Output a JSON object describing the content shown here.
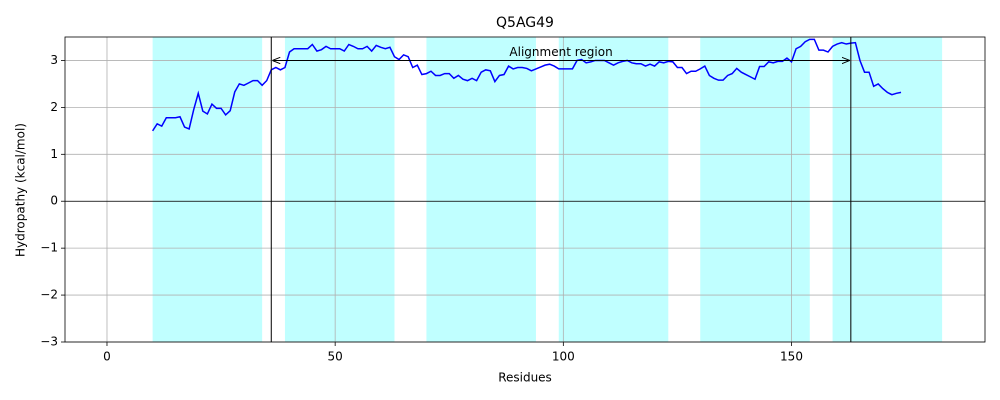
{
  "chart_data": {
    "type": "line",
    "title": "Q5AG49",
    "x_label": "Residues",
    "y_label": "Hydropathy (kcal/mol)",
    "x": [
      10,
      11,
      12,
      13,
      14,
      15,
      16,
      17,
      18,
      19,
      20,
      21,
      22,
      23,
      24,
      25,
      26,
      27,
      28,
      29,
      30,
      31,
      32,
      33,
      34,
      35,
      36,
      37,
      38,
      39,
      40,
      41,
      42,
      43,
      44,
      45,
      46,
      47,
      48,
      49,
      50,
      51,
      52,
      53,
      54,
      55,
      56,
      57,
      58,
      59,
      60,
      61,
      62,
      63,
      64,
      65,
      66,
      67,
      68,
      69,
      70,
      71,
      72,
      73,
      74,
      75,
      76,
      77,
      78,
      79,
      80,
      81,
      82,
      83,
      84,
      85,
      86,
      87,
      88,
      89,
      90,
      91,
      92,
      93,
      94,
      95,
      96,
      97,
      98,
      99,
      100,
      101,
      102,
      103,
      104,
      105,
      106,
      107,
      108,
      109,
      110,
      111,
      112,
      113,
      114,
      115,
      116,
      117,
      118,
      119,
      120,
      121,
      122,
      123,
      124,
      125,
      126,
      127,
      128,
      129,
      130,
      131,
      132,
      133,
      134,
      135,
      136,
      137,
      138,
      139,
      140,
      141,
      142,
      143,
      144,
      145,
      146,
      147,
      148,
      149,
      150,
      151,
      152,
      153,
      154,
      155,
      156,
      157,
      158,
      159,
      160,
      161,
      162,
      163,
      164,
      165,
      166,
      167,
      168,
      169,
      170,
      171,
      172,
      173,
      174
    ],
    "series": [
      {
        "color": "#0000ff",
        "values": [
          1.5,
          1.65,
          1.6,
          1.78,
          1.78,
          1.78,
          1.8,
          1.58,
          1.54,
          1.95,
          2.3,
          1.92,
          1.86,
          2.07,
          1.98,
          1.98,
          1.84,
          1.93,
          2.33,
          2.5,
          2.47,
          2.52,
          2.57,
          2.57,
          2.47,
          2.57,
          2.8,
          2.85,
          2.8,
          2.85,
          3.18,
          3.25,
          3.25,
          3.25,
          3.25,
          3.34,
          3.2,
          3.23,
          3.3,
          3.25,
          3.25,
          3.25,
          3.2,
          3.34,
          3.3,
          3.25,
          3.25,
          3.3,
          3.2,
          3.32,
          3.28,
          3.25,
          3.28,
          3.08,
          3.02,
          3.12,
          3.08,
          2.85,
          2.9,
          2.7,
          2.72,
          2.77,
          2.68,
          2.68,
          2.72,
          2.72,
          2.62,
          2.68,
          2.6,
          2.57,
          2.62,
          2.57,
          2.75,
          2.8,
          2.78,
          2.55,
          2.68,
          2.7,
          2.88,
          2.82,
          2.85,
          2.85,
          2.83,
          2.78,
          2.82,
          2.86,
          2.9,
          2.92,
          2.88,
          2.82,
          2.82,
          2.82,
          2.82,
          3.0,
          3.02,
          2.95,
          2.97,
          3.0,
          3.0,
          3.0,
          2.95,
          2.9,
          2.95,
          2.98,
          3.0,
          2.95,
          2.93,
          2.93,
          2.88,
          2.92,
          2.88,
          2.97,
          2.95,
          2.98,
          2.97,
          2.85,
          2.85,
          2.72,
          2.77,
          2.77,
          2.82,
          2.88,
          2.68,
          2.62,
          2.58,
          2.58,
          2.68,
          2.72,
          2.83,
          2.75,
          2.7,
          2.65,
          2.6,
          2.87,
          2.87,
          2.97,
          2.95,
          2.98,
          2.98,
          3.05,
          2.97,
          3.25,
          3.3,
          3.4,
          3.45,
          3.45,
          3.22,
          3.22,
          3.18,
          3.3,
          3.35,
          3.38,
          3.35,
          3.37,
          3.38,
          3.0,
          2.75,
          2.75,
          2.45,
          2.5,
          2.4,
          2.32,
          2.27,
          2.3,
          2.32
        ]
      }
    ],
    "highlight_regions": {
      "color": "#c0ffff",
      "ranges": [
        [
          10,
          34
        ],
        [
          39,
          63
        ],
        [
          70,
          94
        ],
        [
          99,
          123
        ],
        [
          130,
          154
        ],
        [
          159,
          183
        ]
      ]
    },
    "alignment_region": {
      "label": "Alignment region",
      "start": 36,
      "end": 163,
      "arrow_y": 3
    },
    "xlim": [
      -9.2,
      192.4
    ],
    "ylim": [
      -3,
      3.5
    ],
    "xticks": [
      0,
      50,
      100,
      150
    ],
    "yticks": [
      {
        "value": -3,
        "label": "−3"
      },
      {
        "value": -2,
        "label": "−2"
      },
      {
        "value": -1,
        "label": "−1"
      },
      0,
      1,
      2,
      3
    ],
    "grid": true,
    "zero_line": true
  }
}
